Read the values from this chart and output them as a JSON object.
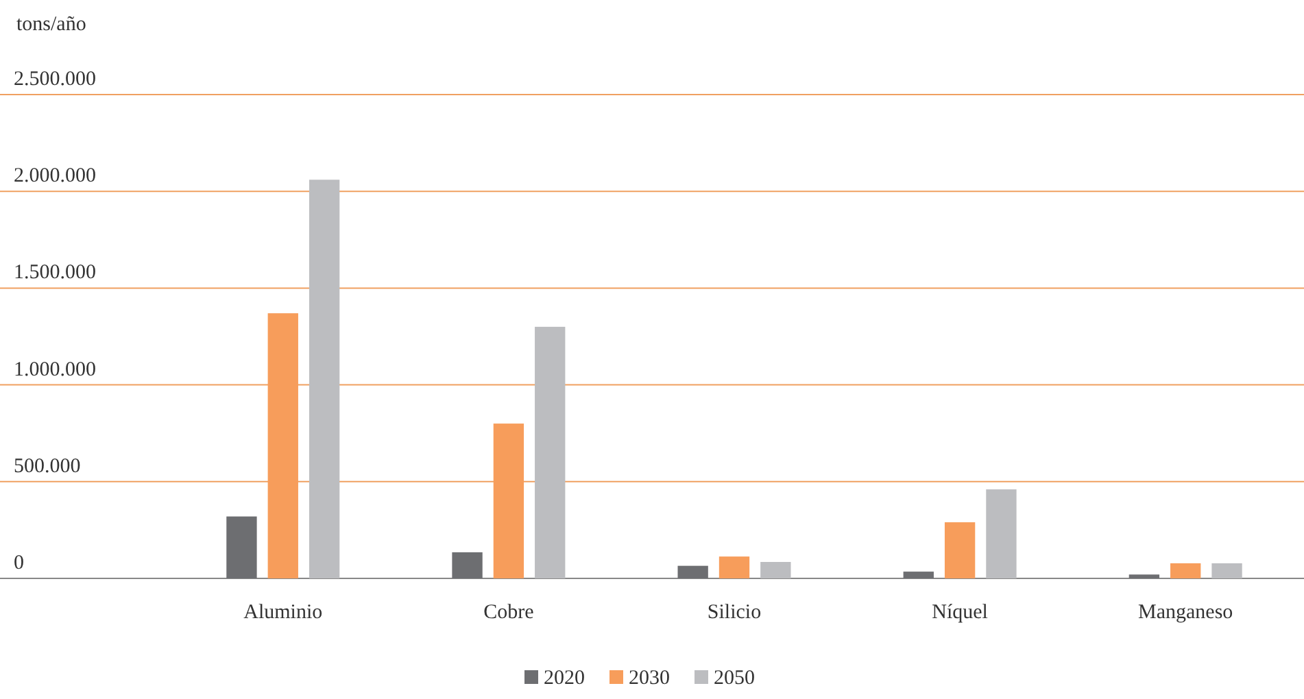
{
  "chart_data": {
    "type": "bar",
    "ylabel": "tons/año",
    "categories": [
      "Aluminio",
      "Cobre",
      "Silicio",
      "Níquel",
      "Manganeso"
    ],
    "series": [
      {
        "name": "2020",
        "color": "#6d6e71",
        "values": [
          320000,
          135000,
          65000,
          35000,
          20000
        ]
      },
      {
        "name": "2030",
        "color": "#f79d5b",
        "values": [
          1370000,
          800000,
          113000,
          290000,
          78000
        ]
      },
      {
        "name": "2050",
        "color": "#bcbdc0",
        "values": [
          2060000,
          1300000,
          85000,
          460000,
          78000
        ]
      }
    ],
    "ylim": [
      0,
      2500000
    ],
    "yticks": [
      {
        "value": 0,
        "label": "0"
      },
      {
        "value": 500000,
        "label": "500.000"
      },
      {
        "value": 1000000,
        "label": "1.000.000"
      },
      {
        "value": 1500000,
        "label": "1.500.000"
      },
      {
        "value": 2000000,
        "label": "2.000.000"
      },
      {
        "value": 2500000,
        "label": "2.500.000"
      }
    ],
    "grid": "y",
    "legend": "bottom"
  }
}
